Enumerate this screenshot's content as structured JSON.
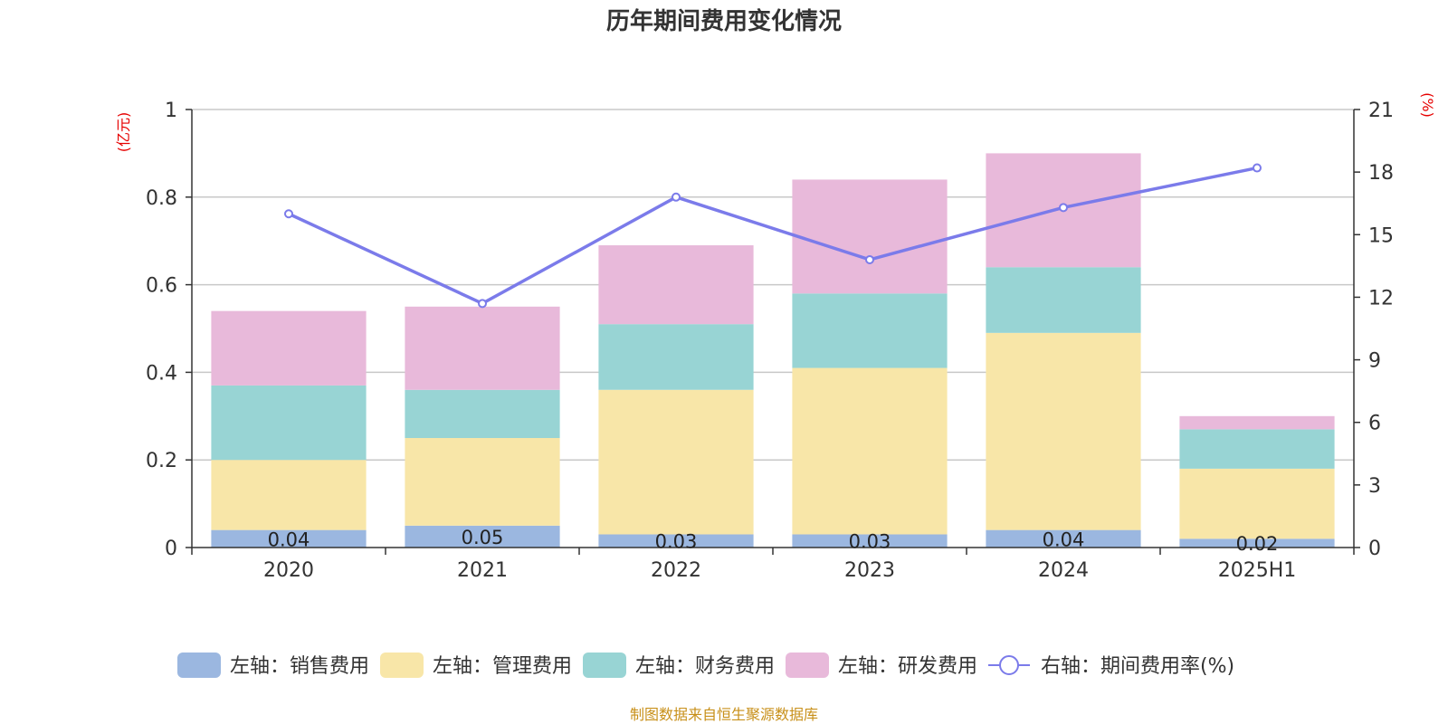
{
  "chart_data": {
    "type": "bar",
    "stacked": true,
    "title": "历年期间费用变化情况",
    "categories": [
      "2020",
      "2021",
      "2022",
      "2023",
      "2024",
      "2025H1"
    ],
    "left_axis": {
      "unit": "(亿元)",
      "ylim": [
        0,
        1
      ],
      "ticks": [
        0,
        0.2,
        0.4,
        0.6,
        0.8,
        1
      ],
      "tick_labels": [
        "0",
        "0.2",
        "0.4",
        "0.6",
        "0.8",
        "1"
      ]
    },
    "right_axis": {
      "unit": "(%)",
      "ylim": [
        0,
        21
      ],
      "ticks": [
        0,
        3,
        6,
        9,
        12,
        15,
        18,
        21
      ],
      "tick_labels": [
        "0",
        "3",
        "6",
        "9",
        "12",
        "15",
        "18",
        "21"
      ]
    },
    "series": [
      {
        "name": "左轴：销售费用",
        "axis": "left",
        "color": "#9bb7e0",
        "values": [
          0.04,
          0.05,
          0.03,
          0.03,
          0.04,
          0.02
        ],
        "data_labels": [
          "0.04",
          "0.05",
          "0.03",
          "0.03",
          "0.04",
          "0.02"
        ]
      },
      {
        "name": "左轴：管理费用",
        "axis": "left",
        "color": "#f8e6a8",
        "values": [
          0.16,
          0.2,
          0.33,
          0.38,
          0.45,
          0.16
        ]
      },
      {
        "name": "左轴：财务费用",
        "axis": "left",
        "color": "#98d4d4",
        "values": [
          0.17,
          0.11,
          0.15,
          0.17,
          0.15,
          0.09
        ]
      },
      {
        "name": "左轴：研发费用",
        "axis": "left",
        "color": "#e8b9da",
        "values": [
          0.17,
          0.19,
          0.18,
          0.26,
          0.26,
          0.03
        ]
      },
      {
        "name": "右轴：期间费用率(%)",
        "axis": "right",
        "type": "line",
        "color": "#7b7bea",
        "values": [
          16.0,
          11.7,
          16.8,
          13.8,
          16.3,
          18.2
        ]
      }
    ],
    "legend_position": "bottom",
    "grid": true
  },
  "footer": {
    "source": "制图数据来自恒生聚源数据库"
  }
}
